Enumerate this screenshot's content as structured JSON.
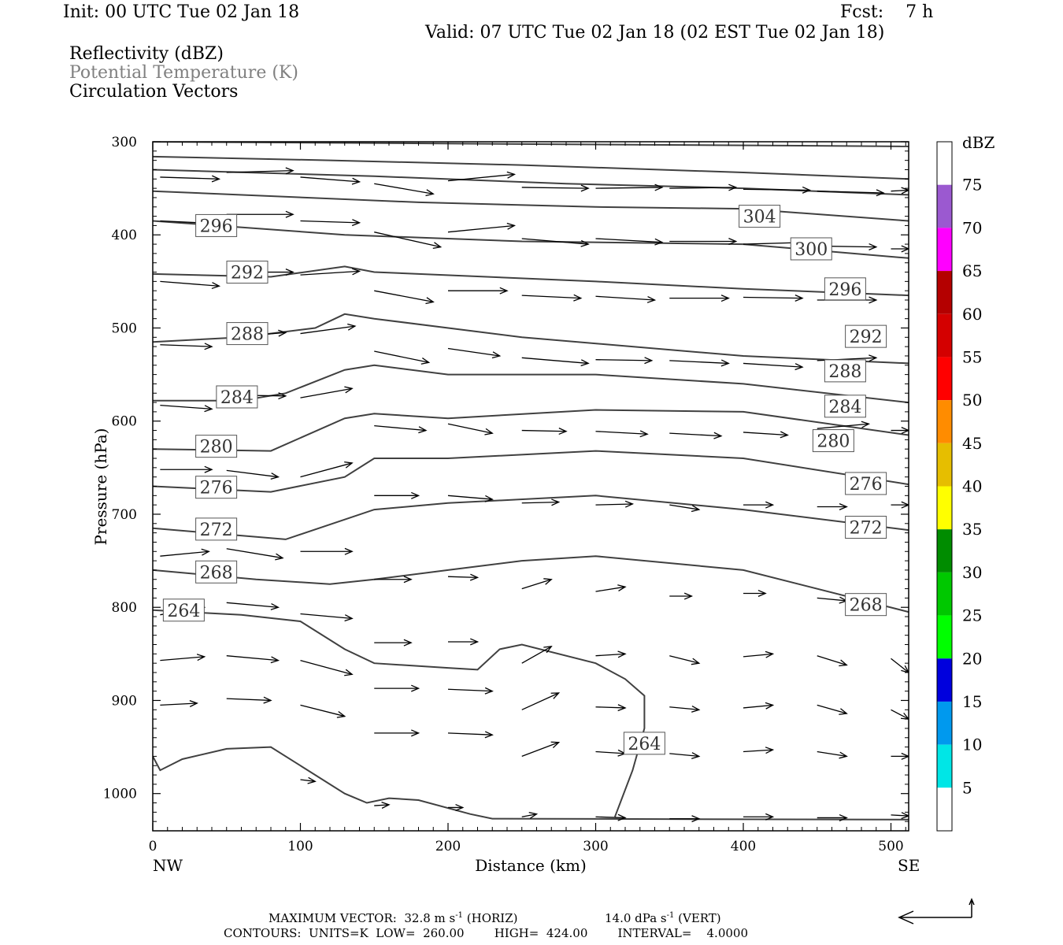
{
  "header": {
    "init": "Init: 00 UTC Tue 02 Jan 18",
    "fcst": "Fcst:    7 h",
    "valid": "Valid: 07 UTC Tue 02 Jan 18 (02 EST Tue 02 Jan 18)",
    "fields": [
      "Reflectivity (dBZ)",
      "Potential Temperature (K)",
      "Circulation Vectors"
    ]
  },
  "footer": {
    "max_vector": "MAXIMUM VECTOR:  32.8 m s",
    "horiz": "(HORIZ)",
    "vert_val": "14.0 dPa s",
    "vert": "(VERT)",
    "exp": "-1",
    "contours": "CONTOURS:  UNITS=K  LOW=  260.00        HIGH=  424.00        INTERVAL=    4.0000"
  },
  "colorbar": {
    "title": "dBZ",
    "labels": [
      "5",
      "10",
      "15",
      "20",
      "25",
      "30",
      "35",
      "40",
      "45",
      "50",
      "55",
      "60",
      "65",
      "70",
      "75"
    ],
    "colors": [
      "#ffffff",
      "#00e6e6",
      "#0099ee",
      "#0000dd",
      "#00ff00",
      "#00c800",
      "#008c00",
      "#ffff00",
      "#e6be00",
      "#ff8c00",
      "#ff0000",
      "#d40000",
      "#b40000",
      "#ff00ff",
      "#9b59d0",
      "#ffffff"
    ]
  },
  "chart_data": {
    "type": "cross-section",
    "xlabel": "Distance (km)",
    "ylabel": "Pressure (hPa)",
    "xlim": [
      0,
      512
    ],
    "ylim": [
      1040,
      300
    ],
    "x_ticks": [
      0,
      100,
      200,
      300,
      400,
      500
    ],
    "y_ticks": [
      300,
      400,
      500,
      600,
      700,
      800,
      900,
      1000
    ],
    "x_end_labels": [
      "NW",
      "SE"
    ],
    "contour_labels": [
      {
        "v": "304",
        "x": 411,
        "p": 380
      },
      {
        "v": "300",
        "x": 446,
        "p": 415
      },
      {
        "v": "296",
        "x": 43,
        "p": 390
      },
      {
        "v": "296",
        "x": 469,
        "p": 458
      },
      {
        "v": "292",
        "x": 64,
        "p": 440
      },
      {
        "v": "292",
        "x": 483,
        "p": 509
      },
      {
        "v": "288",
        "x": 64,
        "p": 506
      },
      {
        "v": "288",
        "x": 469,
        "p": 546
      },
      {
        "v": "284",
        "x": 57,
        "p": 574
      },
      {
        "v": "284",
        "x": 469,
        "p": 584
      },
      {
        "v": "280",
        "x": 43,
        "p": 627
      },
      {
        "v": "280",
        "x": 461,
        "p": 621
      },
      {
        "v": "276",
        "x": 43,
        "p": 671
      },
      {
        "v": "276",
        "x": 483,
        "p": 667
      },
      {
        "v": "272",
        "x": 43,
        "p": 716
      },
      {
        "v": "272",
        "x": 483,
        "p": 714
      },
      {
        "v": "268",
        "x": 43,
        "p": 762
      },
      {
        "v": "268",
        "x": 483,
        "p": 797
      },
      {
        "v": "264",
        "x": 21,
        "p": 803
      },
      {
        "v": "264",
        "x": 333,
        "p": 946
      }
    ],
    "contours": [
      [
        [
          0,
          300
        ],
        [
          512,
          305
        ]
      ],
      [
        [
          0,
          316
        ],
        [
          120,
          320
        ],
        [
          250,
          325
        ],
        [
          400,
          333
        ],
        [
          512,
          340
        ]
      ],
      [
        [
          0,
          330
        ],
        [
          150,
          337
        ],
        [
          280,
          345
        ],
        [
          400,
          350
        ],
        [
          512,
          357
        ]
      ],
      [
        [
          0,
          353
        ],
        [
          180,
          365
        ],
        [
          300,
          370
        ],
        [
          400,
          372
        ],
        [
          512,
          385
        ]
      ],
      [
        [
          0,
          385
        ],
        [
          130,
          400
        ],
        [
          250,
          407
        ],
        [
          400,
          410
        ],
        [
          512,
          425
        ]
      ],
      [
        [
          0,
          442
        ],
        [
          80,
          445
        ],
        [
          130,
          434
        ],
        [
          150,
          440
        ],
        [
          300,
          450
        ],
        [
          400,
          458
        ],
        [
          512,
          465
        ]
      ],
      [
        [
          0,
          515
        ],
        [
          60,
          510
        ],
        [
          110,
          500
        ],
        [
          130,
          485
        ],
        [
          150,
          490
        ],
        [
          250,
          510
        ],
        [
          400,
          530
        ],
        [
          512,
          538
        ]
      ],
      [
        [
          0,
          578
        ],
        [
          60,
          578
        ],
        [
          90,
          570
        ],
        [
          130,
          545
        ],
        [
          150,
          540
        ],
        [
          200,
          550
        ],
        [
          300,
          550
        ],
        [
          400,
          560
        ],
        [
          512,
          580
        ]
      ],
      [
        [
          0,
          630
        ],
        [
          80,
          632
        ],
        [
          130,
          597
        ],
        [
          150,
          592
        ],
        [
          200,
          597
        ],
        [
          300,
          588
        ],
        [
          400,
          590
        ],
        [
          512,
          615
        ]
      ],
      [
        [
          0,
          670
        ],
        [
          80,
          676
        ],
        [
          130,
          660
        ],
        [
          150,
          640
        ],
        [
          200,
          640
        ],
        [
          300,
          632
        ],
        [
          400,
          640
        ],
        [
          512,
          668
        ]
      ],
      [
        [
          0,
          715
        ],
        [
          90,
          727
        ],
        [
          150,
          695
        ],
        [
          200,
          688
        ],
        [
          300,
          680
        ],
        [
          400,
          695
        ],
        [
          512,
          717
        ]
      ],
      [
        [
          0,
          760
        ],
        [
          70,
          770
        ],
        [
          120,
          775
        ],
        [
          150,
          770
        ],
        [
          200,
          760
        ],
        [
          250,
          750
        ],
        [
          300,
          745
        ],
        [
          400,
          760
        ],
        [
          512,
          805
        ]
      ],
      [
        [
          0,
          803
        ],
        [
          60,
          808
        ],
        [
          100,
          815
        ],
        [
          130,
          845
        ],
        [
          150,
          860
        ],
        [
          200,
          865
        ],
        [
          220,
          867
        ],
        [
          235,
          845
        ],
        [
          250,
          840
        ],
        [
          300,
          860
        ],
        [
          320,
          877
        ],
        [
          333,
          895
        ],
        [
          333,
          930
        ],
        [
          325,
          975
        ],
        [
          313,
          1025
        ]
      ],
      [
        [
          0,
          960
        ],
        [
          5,
          975
        ],
        [
          20,
          963
        ],
        [
          50,
          952
        ],
        [
          80,
          950
        ],
        [
          100,
          970
        ],
        [
          130,
          1000
        ],
        [
          145,
          1010
        ],
        [
          160,
          1005
        ],
        [
          180,
          1007
        ],
        [
          215,
          1022
        ],
        [
          230,
          1027
        ],
        [
          512,
          1028
        ]
      ]
    ],
    "vectors": [
      [
        5,
        338,
        45,
        340
      ],
      [
        50,
        333,
        95,
        331
      ],
      [
        100,
        338,
        140,
        343
      ],
      [
        150,
        345,
        190,
        356
      ],
      [
        200,
        342,
        245,
        335
      ],
      [
        250,
        349,
        295,
        350
      ],
      [
        300,
        350,
        345,
        349
      ],
      [
        350,
        350,
        395,
        349
      ],
      [
        400,
        351,
        445,
        352
      ],
      [
        450,
        353,
        495,
        355
      ],
      [
        500,
        353,
        512,
        352
      ],
      [
        5,
        385,
        45,
        388
      ],
      [
        50,
        378,
        95,
        378
      ],
      [
        100,
        385,
        140,
        387
      ],
      [
        150,
        397,
        195,
        413
      ],
      [
        200,
        397,
        245,
        390
      ],
      [
        250,
        404,
        295,
        410
      ],
      [
        300,
        404,
        345,
        408
      ],
      [
        350,
        407,
        395,
        407
      ],
      [
        400,
        410,
        445,
        408
      ],
      [
        450,
        412,
        490,
        413
      ],
      [
        500,
        415,
        512,
        415
      ],
      [
        5,
        450,
        45,
        455
      ],
      [
        50,
        440,
        95,
        440
      ],
      [
        100,
        443,
        140,
        439
      ],
      [
        150,
        460,
        190,
        472
      ],
      [
        200,
        460,
        240,
        460
      ],
      [
        250,
        465,
        290,
        468
      ],
      [
        300,
        466,
        340,
        470
      ],
      [
        350,
        468,
        390,
        468
      ],
      [
        400,
        467,
        440,
        468
      ],
      [
        450,
        470,
        490,
        470
      ],
      [
        5,
        518,
        40,
        520
      ],
      [
        50,
        510,
        90,
        505
      ],
      [
        100,
        506,
        137,
        498
      ],
      [
        150,
        525,
        187,
        537
      ],
      [
        200,
        522,
        235,
        530
      ],
      [
        250,
        532,
        295,
        538
      ],
      [
        300,
        534,
        338,
        535
      ],
      [
        350,
        535,
        390,
        538
      ],
      [
        400,
        538,
        440,
        542
      ],
      [
        450,
        535,
        490,
        532
      ],
      [
        5,
        583,
        40,
        587
      ],
      [
        50,
        572,
        90,
        573
      ],
      [
        100,
        575,
        135,
        565
      ],
      [
        150,
        605,
        185,
        610
      ],
      [
        200,
        603,
        230,
        613
      ],
      [
        250,
        610,
        280,
        611
      ],
      [
        300,
        611,
        335,
        614
      ],
      [
        350,
        613,
        385,
        616
      ],
      [
        400,
        612,
        430,
        615
      ],
      [
        450,
        608,
        485,
        603
      ],
      [
        500,
        610,
        512,
        610
      ],
      [
        5,
        652,
        40,
        652
      ],
      [
        50,
        653,
        85,
        660
      ],
      [
        100,
        660,
        135,
        645
      ],
      [
        150,
        680,
        180,
        680
      ],
      [
        200,
        680,
        230,
        684
      ],
      [
        250,
        688,
        275,
        687
      ],
      [
        300,
        690,
        325,
        689
      ],
      [
        350,
        690,
        370,
        695
      ],
      [
        400,
        690,
        420,
        690
      ],
      [
        450,
        692,
        470,
        692
      ],
      [
        500,
        690,
        512,
        690
      ],
      [
        5,
        745,
        38,
        740
      ],
      [
        50,
        737,
        88,
        747
      ],
      [
        100,
        740,
        135,
        740
      ],
      [
        150,
        770,
        175,
        770
      ],
      [
        200,
        767,
        220,
        768
      ],
      [
        250,
        780,
        270,
        770
      ],
      [
        300,
        783,
        320,
        778
      ],
      [
        350,
        788,
        365,
        788
      ],
      [
        400,
        785,
        415,
        785
      ],
      [
        450,
        790,
        470,
        793
      ],
      [
        5,
        808,
        35,
        800
      ],
      [
        50,
        795,
        85,
        800
      ],
      [
        100,
        807,
        135,
        812
      ],
      [
        150,
        838,
        175,
        838
      ],
      [
        200,
        837,
        220,
        837
      ],
      [
        250,
        860,
        270,
        842
      ],
      [
        300,
        852,
        320,
        850
      ],
      [
        350,
        852,
        370,
        860
      ],
      [
        400,
        853,
        420,
        850
      ],
      [
        450,
        852,
        470,
        862
      ],
      [
        500,
        855,
        512,
        870
      ],
      [
        5,
        857,
        35,
        853
      ],
      [
        50,
        852,
        85,
        857
      ],
      [
        100,
        857,
        135,
        872
      ],
      [
        150,
        887,
        180,
        887
      ],
      [
        200,
        888,
        230,
        890
      ],
      [
        250,
        910,
        275,
        892
      ],
      [
        300,
        907,
        320,
        908
      ],
      [
        350,
        907,
        370,
        910
      ],
      [
        400,
        908,
        420,
        905
      ],
      [
        450,
        905,
        470,
        914
      ],
      [
        500,
        910,
        512,
        920
      ],
      [
        5,
        905,
        30,
        903
      ],
      [
        50,
        898,
        80,
        900
      ],
      [
        100,
        905,
        130,
        917
      ],
      [
        150,
        935,
        180,
        935
      ],
      [
        200,
        935,
        230,
        937
      ],
      [
        250,
        960,
        275,
        945
      ],
      [
        300,
        955,
        320,
        957
      ],
      [
        350,
        957,
        370,
        960
      ],
      [
        400,
        955,
        420,
        953
      ],
      [
        450,
        955,
        470,
        960
      ],
      [
        500,
        960,
        512,
        960
      ],
      [
        100,
        985,
        110,
        987
      ],
      [
        150,
        1013,
        160,
        1012
      ],
      [
        200,
        1015,
        210,
        1015
      ],
      [
        250,
        1025,
        260,
        1022
      ],
      [
        300,
        1025,
        320,
        1026
      ],
      [
        350,
        1027,
        370,
        1027
      ],
      [
        400,
        1025,
        420,
        1025
      ],
      [
        450,
        1026,
        470,
        1026
      ],
      [
        500,
        1023,
        512,
        1024
      ]
    ]
  }
}
